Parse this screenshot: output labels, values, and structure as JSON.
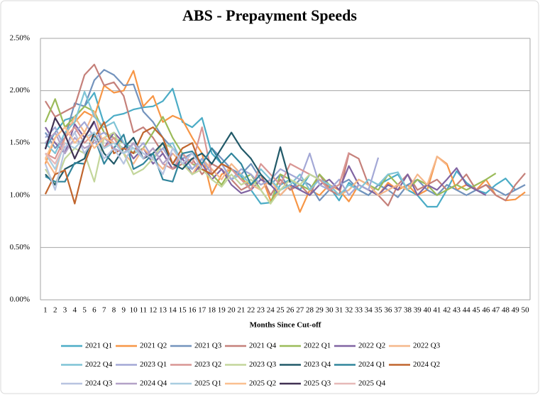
{
  "chart_data": {
    "type": "line",
    "title": "ABS - Prepayment Speeds",
    "x_label": "Months Since Cut-off",
    "categories": [
      1,
      2,
      3,
      4,
      5,
      6,
      7,
      8,
      9,
      10,
      11,
      12,
      13,
      14,
      15,
      16,
      17,
      18,
      19,
      20,
      21,
      22,
      23,
      24,
      25,
      26,
      27,
      28,
      29,
      30,
      31,
      32,
      33,
      34,
      35,
      36,
      37,
      38,
      39,
      40,
      41,
      42,
      43,
      44,
      45,
      46,
      47,
      48,
      49,
      50
    ],
    "ylim": [
      0,
      2.5
    ],
    "yticks": [
      {
        "value": 0,
        "label": "0.00%"
      },
      {
        "value": 0.5,
        "label": "0.50%"
      },
      {
        "value": 1,
        "label": "1.00%"
      },
      {
        "value": 1.5,
        "label": "1.50%"
      },
      {
        "value": 2,
        "label": "2.00%"
      },
      {
        "value": 2.5,
        "label": "2.50%"
      }
    ],
    "grid": true,
    "legend": "bottom",
    "series": [
      {
        "name": "2021 Q1",
        "color": "#4bacc6",
        "values": [
          1.45,
          1.6,
          1.72,
          1.75,
          1.85,
          1.98,
          1.68,
          1.76,
          1.78,
          1.82,
          1.84,
          1.85,
          1.9,
          2.02,
          1.7,
          1.65,
          1.74,
          1.4,
          1.3,
          1.25,
          1.18,
          1.05,
          0.92,
          0.93,
          1.1,
          1.15,
          1.05,
          1.2,
          1.15,
          1.08,
          0.95,
          1.12,
          1.05,
          1.0,
          1.1,
          1.15,
          1.2,
          1.05,
          1.0,
          0.89,
          0.89,
          1.05,
          1.23,
          1.12,
          1.05,
          1.02,
          1.1,
          1.16,
          1.05,
          null
        ]
      },
      {
        "name": "2021 Q2",
        "color": "#f79646",
        "values": [
          1.3,
          1.55,
          1.65,
          1.7,
          1.8,
          1.75,
          2.05,
          1.98,
          2.0,
          2.19,
          1.85,
          1.95,
          1.7,
          1.76,
          1.72,
          1.55,
          1.4,
          1.01,
          1.2,
          1.25,
          1.15,
          1.1,
          1.2,
          0.95,
          1.05,
          1.1,
          0.84,
          1.05,
          1.0,
          1.1,
          1.05,
          0.94,
          1.1,
          1.05,
          1.0,
          1.12,
          1.05,
          1.1,
          1.0,
          1.05,
          1.37,
          1.3,
          1.05,
          1.1,
          1.05,
          1.15,
          1.0,
          0.95,
          0.96,
          1.03
        ]
      },
      {
        "name": "2021 Q3",
        "color": "#7393bd",
        "values": [
          1.6,
          1.45,
          1.55,
          1.88,
          1.85,
          2.1,
          2.2,
          2.15,
          2.05,
          2.06,
          1.8,
          1.7,
          1.55,
          1.45,
          1.35,
          1.4,
          1.3,
          1.45,
          1.35,
          1.25,
          1.2,
          1.3,
          1.15,
          1.1,
          1.2,
          1.05,
          1.15,
          1.1,
          0.95,
          1.05,
          1.1,
          1.15,
          1.05,
          1.0,
          1.1,
          1.05,
          0.98,
          1.1,
          1.15,
          1.05,
          1.0,
          1.1,
          1.05,
          1.0,
          1.05,
          1.1,
          1.05,
          1.0,
          1.05,
          1.1
        ]
      },
      {
        "name": "2021 Q4",
        "color": "#c5807a",
        "values": [
          1.9,
          1.75,
          1.8,
          1.85,
          2.15,
          2.25,
          2.05,
          2.08,
          1.95,
          1.6,
          1.65,
          1.55,
          1.4,
          1.25,
          1.3,
          1.35,
          1.2,
          1.3,
          1.25,
          1.15,
          1.05,
          1.1,
          1.2,
          1.0,
          1.15,
          1.05,
          1.1,
          1.0,
          1.2,
          1.05,
          1.0,
          1.4,
          1.35,
          1.1,
          1.0,
          0.9,
          1.1,
          1.2,
          1.05,
          1.1,
          1.15,
          1.05,
          1.1,
          1.2,
          1.05,
          1.1,
          1.0,
          0.95,
          1.1,
          1.21
        ]
      },
      {
        "name": "2022 Q1",
        "color": "#9bbb59",
        "values": [
          1.7,
          1.92,
          1.65,
          1.75,
          1.85,
          1.8,
          1.6,
          1.55,
          1.5,
          1.4,
          1.45,
          1.6,
          1.75,
          1.55,
          1.4,
          1.3,
          1.25,
          1.2,
          1.1,
          1.25,
          1.15,
          1.2,
          1.05,
          0.92,
          1.2,
          1.15,
          1.1,
          1.05,
          1.2,
          1.1,
          1.0,
          1.05,
          1.15,
          1.1,
          1.05,
          1.2,
          1.1,
          1.05,
          1.15,
          1.1,
          1.0,
          1.05,
          1.1,
          1.05,
          1.1,
          1.15,
          1.21,
          null,
          null,
          null
        ]
      },
      {
        "name": "2022 Q2",
        "color": "#8064a2",
        "values": [
          1.65,
          1.5,
          1.4,
          1.68,
          1.55,
          1.7,
          1.45,
          1.6,
          1.5,
          1.35,
          1.45,
          1.3,
          1.4,
          1.25,
          1.35,
          1.2,
          1.3,
          1.15,
          1.25,
          1.1,
          1.02,
          1.05,
          1.15,
          1.1,
          1.0,
          1.1,
          1.05,
          1.0,
          1.1,
          1.15,
          1.05,
          1.28,
          1.1,
          1.05,
          1.0,
          1.1,
          1.05,
          1.2,
          1.0,
          1.1,
          1.05,
          1.15,
          1.26,
          1.1,
          1.05,
          1.0,
          null,
          null,
          null,
          null
        ]
      },
      {
        "name": "2022 Q3",
        "color": "#f5b78a",
        "values": [
          1.35,
          1.2,
          1.55,
          1.75,
          1.6,
          1.8,
          1.45,
          1.55,
          1.4,
          1.3,
          1.45,
          1.35,
          1.25,
          1.4,
          1.3,
          1.2,
          1.35,
          1.25,
          1.15,
          1.3,
          1.2,
          1.1,
          1.05,
          1.15,
          1.0,
          1.1,
          1.2,
          1.05,
          1.15,
          1.1,
          1.0,
          1.05,
          1.15,
          1.1,
          1.0,
          1.05,
          1.1,
          1.05,
          1.2,
          1.1,
          1.37,
          1.29,
          null,
          null,
          null,
          null,
          null,
          null,
          null,
          null
        ]
      },
      {
        "name": "2022 Q4",
        "color": "#7fc4d6",
        "values": [
          1.5,
          1.4,
          1.6,
          1.7,
          1.99,
          1.75,
          1.65,
          1.7,
          1.5,
          1.45,
          1.4,
          1.35,
          1.45,
          1.5,
          1.3,
          1.25,
          1.35,
          1.2,
          1.3,
          1.15,
          1.2,
          1.1,
          1.25,
          1.15,
          1.05,
          1.1,
          1.2,
          1.05,
          1.15,
          1.1,
          1.0,
          1.1,
          1.05,
          1.15,
          1.1,
          1.2,
          1.22,
          1.05,
          null,
          null,
          null,
          null,
          null,
          null,
          null,
          null,
          null,
          null,
          null,
          null
        ]
      },
      {
        "name": "2023 Q1",
        "color": "#a3a8d6",
        "values": [
          1.55,
          1.65,
          1.45,
          1.6,
          1.7,
          1.55,
          1.6,
          1.5,
          1.45,
          1.4,
          1.5,
          1.35,
          1.45,
          1.3,
          1.4,
          1.25,
          1.35,
          1.2,
          1.3,
          1.15,
          1.25,
          1.2,
          1.1,
          1.15,
          1.25,
          1.2,
          1.15,
          1.4,
          1.1,
          1.05,
          1.15,
          1.0,
          1.1,
          1.05,
          1.36,
          null,
          null,
          null,
          null,
          null,
          null,
          null,
          null,
          null,
          null,
          null,
          null,
          null,
          null,
          null
        ]
      },
      {
        "name": "2023 Q2",
        "color": "#d99694",
        "values": [
          1.4,
          1.35,
          1.55,
          1.65,
          1.5,
          1.6,
          1.45,
          1.55,
          1.4,
          1.5,
          1.35,
          1.45,
          1.3,
          1.25,
          1.4,
          1.3,
          1.65,
          1.2,
          1.3,
          1.25,
          1.15,
          1.05,
          1.3,
          1.2,
          1.1,
          1.3,
          1.25,
          1.2,
          1.15,
          1.05,
          1.1,
          1.41,
          null,
          null,
          null,
          null,
          null,
          null,
          null,
          null,
          null,
          null,
          null,
          null,
          null,
          null,
          null,
          null,
          null,
          null
        ]
      },
      {
        "name": "2023 Q3",
        "color": "#c3d69b",
        "values": [
          1.25,
          1.1,
          1.35,
          1.45,
          1.4,
          1.13,
          1.55,
          1.6,
          1.4,
          1.2,
          1.25,
          1.35,
          1.5,
          1.45,
          1.3,
          1.2,
          1.25,
          1.15,
          1.08,
          1.2,
          1.1,
          1.15,
          1.05,
          0.92,
          1.05,
          1.15,
          1.1,
          1.2,
          1.15,
          null,
          null,
          null,
          null,
          null,
          null,
          null,
          null,
          null,
          null,
          null,
          null,
          null,
          null,
          null,
          null,
          null,
          null,
          null,
          null,
          null
        ]
      },
      {
        "name": "2023 Q4",
        "color": "#215968",
        "values": [
          1.2,
          1.1,
          1.25,
          1.3,
          1.35,
          1.6,
          1.4,
          1.3,
          1.45,
          1.55,
          1.35,
          1.4,
          1.5,
          1.3,
          1.25,
          1.35,
          1.4,
          1.3,
          1.45,
          1.6,
          1.45,
          1.35,
          1.2,
          1.1,
          1.46,
          1.12,
          null,
          null,
          null,
          null,
          null,
          null,
          null,
          null,
          null,
          null,
          null,
          null,
          null,
          null,
          null,
          null,
          null,
          null,
          null,
          null,
          null,
          null,
          null,
          null
        ]
      },
      {
        "name": "2024 Q1",
        "color": "#31859c",
        "values": [
          1.18,
          1.13,
          1.13,
          1.31,
          1.3,
          1.55,
          1.3,
          1.45,
          1.58,
          1.25,
          1.3,
          1.4,
          1.15,
          1.13,
          1.4,
          1.42,
          1.3,
          1.45,
          1.3,
          1.4,
          1.3,
          1.1,
          1.2,
          null,
          null,
          null,
          null,
          null,
          null,
          null,
          null,
          null,
          null,
          null,
          null,
          null,
          null,
          null,
          null,
          null,
          null,
          null,
          null,
          null,
          null,
          null,
          null,
          null,
          null,
          null
        ]
      },
      {
        "name": "2024 Q2",
        "color": "#c0652d",
        "values": [
          1.01,
          1.2,
          1.24,
          0.92,
          1.3,
          1.55,
          1.7,
          1.4,
          1.45,
          1.4,
          1.6,
          1.65,
          1.55,
          1.3,
          1.45,
          1.5,
          1.25,
          1.2,
          1.3,
          1.25,
          null,
          null,
          null,
          null,
          null,
          null,
          null,
          null,
          null,
          null,
          null,
          null,
          null,
          null,
          null,
          null,
          null,
          null,
          null,
          null,
          null,
          null,
          null,
          null,
          null,
          null,
          null,
          null,
          null,
          null
        ]
      },
      {
        "name": "2024 Q3",
        "color": "#b8c4e0",
        "values": [
          1.3,
          1.05,
          1.45,
          1.6,
          1.4,
          1.55,
          1.35,
          1.45,
          1.3,
          1.5,
          1.4,
          1.35,
          1.2,
          1.45,
          1.3,
          1.4,
          1.25,
          null,
          null,
          null,
          null,
          null,
          null,
          null,
          null,
          null,
          null,
          null,
          null,
          null,
          null,
          null,
          null,
          null,
          null,
          null,
          null,
          null,
          null,
          null,
          null,
          null,
          null,
          null,
          null,
          null,
          null,
          null,
          null,
          null
        ]
      },
      {
        "name": "2024 Q4",
        "color": "#b3a2c7",
        "values": [
          1.5,
          1.6,
          1.4,
          1.55,
          1.45,
          1.5,
          1.55,
          1.45,
          1.4,
          1.5,
          1.35,
          1.45,
          1.3,
          1.4,
          null,
          null,
          null,
          null,
          null,
          null,
          null,
          null,
          null,
          null,
          null,
          null,
          null,
          null,
          null,
          null,
          null,
          null,
          null,
          null,
          null,
          null,
          null,
          null,
          null,
          null,
          null,
          null,
          null,
          null,
          null,
          null,
          null,
          null,
          null,
          null
        ]
      },
      {
        "name": "2025 Q1",
        "color": "#a9cde0",
        "values": [
          1.4,
          1.25,
          1.5,
          1.45,
          1.55,
          1.6,
          1.45,
          1.5,
          1.4,
          1.45,
          1.35,
          null,
          null,
          null,
          null,
          null,
          null,
          null,
          null,
          null,
          null,
          null,
          null,
          null,
          null,
          null,
          null,
          null,
          null,
          null,
          null,
          null,
          null,
          null,
          null,
          null,
          null,
          null,
          null,
          null,
          null,
          null,
          null,
          null,
          null,
          null,
          null,
          null,
          null,
          null
        ]
      },
      {
        "name": "2025 Q2",
        "color": "#fac090",
        "values": [
          1.35,
          1.55,
          1.65,
          1.5,
          1.6,
          1.45,
          1.55,
          1.5,
          null,
          null,
          null,
          null,
          null,
          null,
          null,
          null,
          null,
          null,
          null,
          null,
          null,
          null,
          null,
          null,
          null,
          null,
          null,
          null,
          null,
          null,
          null,
          null,
          null,
          null,
          null,
          null,
          null,
          null,
          null,
          null,
          null,
          null,
          null,
          null,
          null,
          null,
          null,
          null,
          null,
          null
        ]
      },
      {
        "name": "2025 Q3",
        "color": "#403152",
        "values": [
          1.44,
          1.74,
          1.58,
          1.35,
          1.55,
          1.71,
          null,
          null,
          null,
          null,
          null,
          null,
          null,
          null,
          null,
          null,
          null,
          null,
          null,
          null,
          null,
          null,
          null,
          null,
          null,
          null,
          null,
          null,
          null,
          null,
          null,
          null,
          null,
          null,
          null,
          null,
          null,
          null,
          null,
          null,
          null,
          null,
          null,
          null,
          null,
          null,
          null,
          null,
          null,
          null
        ]
      },
      {
        "name": "2025 Q4",
        "color": "#e6b9b8",
        "values": [
          1.4,
          1.3,
          1.5,
          null,
          null,
          null,
          null,
          null,
          null,
          null,
          null,
          null,
          null,
          null,
          null,
          null,
          null,
          null,
          null,
          null,
          null,
          null,
          null,
          null,
          null,
          null,
          null,
          null,
          null,
          null,
          null,
          null,
          null,
          null,
          null,
          null,
          null,
          null,
          null,
          null,
          null,
          null,
          null,
          null,
          null,
          null,
          null,
          null,
          null,
          null
        ]
      }
    ]
  }
}
